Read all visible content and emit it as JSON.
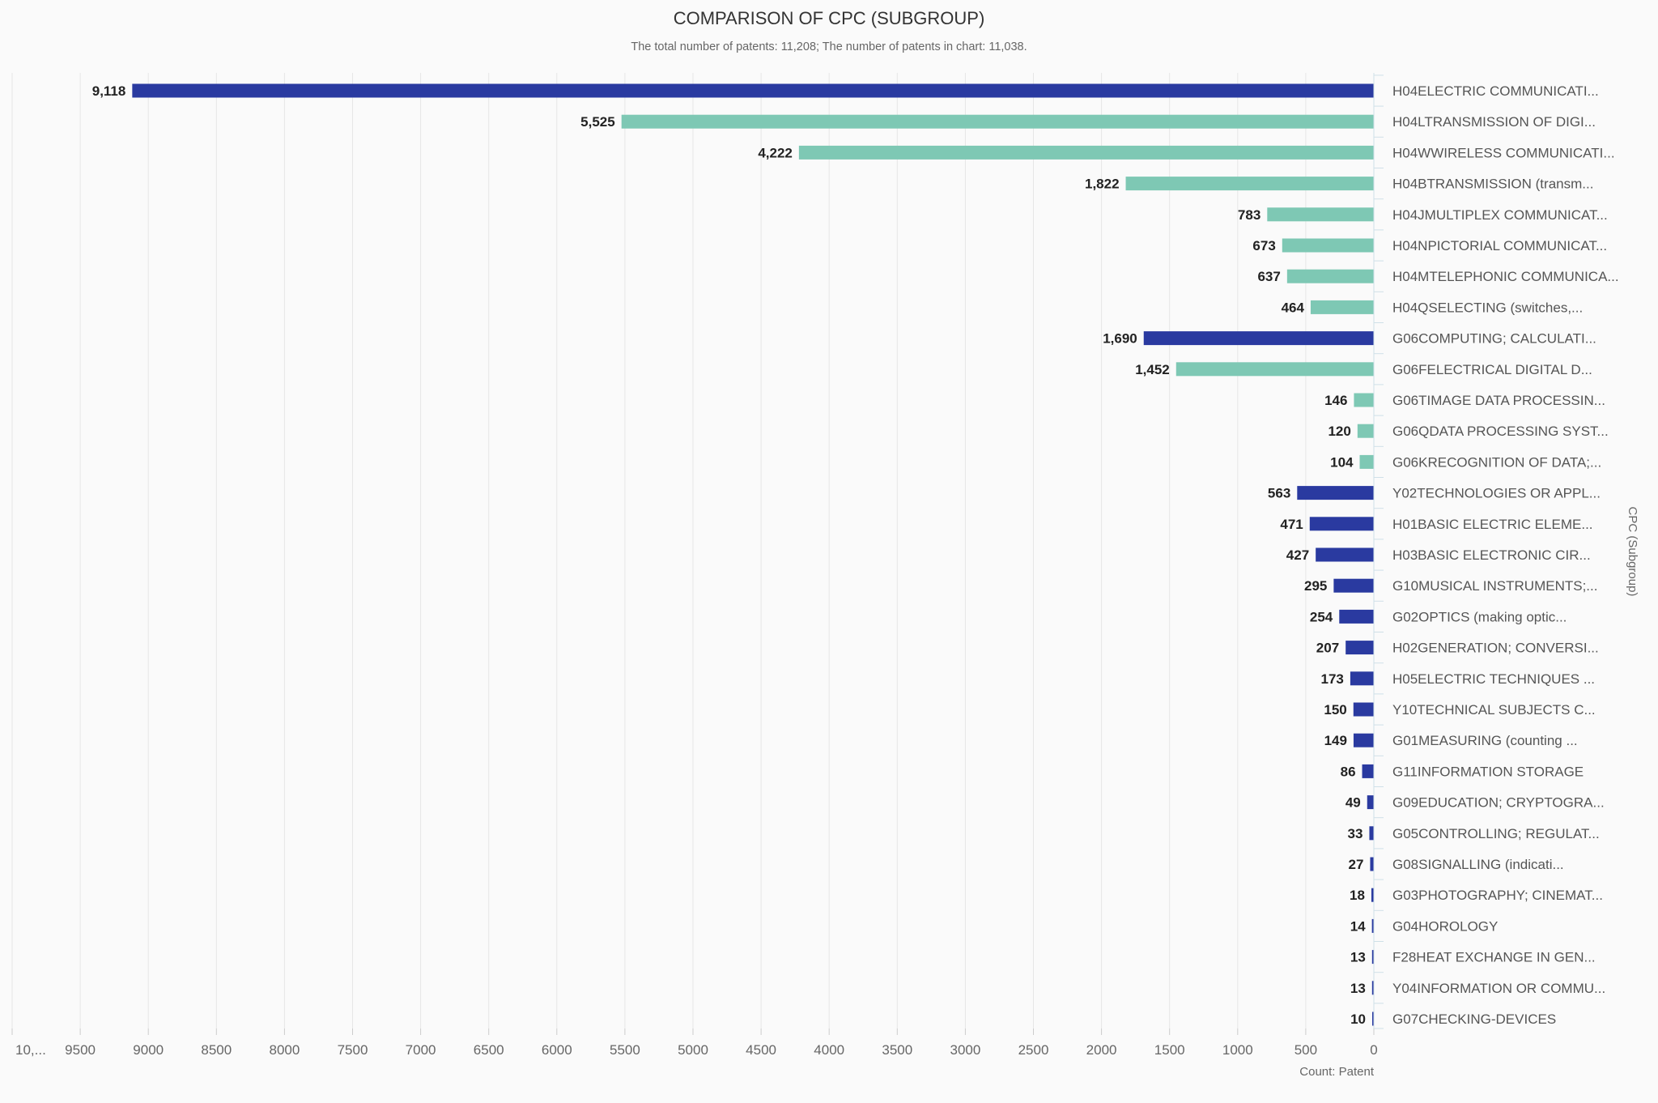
{
  "chart_data": {
    "type": "bar",
    "orientation": "horizontal",
    "title": "COMPARISON OF CPC (SUBGROUP)",
    "subtitle": "The total number of patents: 11,208; The number of patents in chart: 11,038.",
    "xlabel": "Count: Patent",
    "ylabel": "CPC (Subgroup)",
    "xlim": [
      0,
      10000
    ],
    "x_reversed": true,
    "x_ticks": [
      "0",
      "500",
      "1000",
      "1500",
      "2000",
      "2500",
      "3000",
      "3500",
      "4000",
      "4500",
      "5000",
      "5500",
      "6000",
      "6500",
      "7000",
      "7500",
      "8000",
      "8500",
      "9000",
      "9500",
      "10,..."
    ],
    "grid": true,
    "colors": {
      "dark": "#2a3aa0",
      "light": "#7ec8b4"
    },
    "categories": [
      "H04ELECTRIC COMMUNICATI...",
      "H04LTRANSMISSION OF DIGI...",
      "H04WWIRELESS COMMUNICATI...",
      "H04BTRANSMISSION (transm...",
      "H04JMULTIPLEX COMMUNICAT...",
      "H04NPICTORIAL COMMUNICAT...",
      "H04MTELEPHONIC COMMUNICA...",
      "H04QSELECTING (switches,...",
      "G06COMPUTING; CALCULATI...",
      "G06FELECTRICAL DIGITAL D...",
      "G06TIMAGE DATA PROCESSIN...",
      "G06QDATA PROCESSING SYST...",
      "G06KRECOGNITION OF DATA;...",
      "Y02TECHNOLOGIES OR APPL...",
      "H01BASIC ELECTRIC ELEME...",
      "H03BASIC ELECTRONIC CIR...",
      "G10MUSICAL INSTRUMENTS;...",
      "G02OPTICS (making optic...",
      "H02GENERATION; CONVERSI...",
      "H05ELECTRIC TECHNIQUES ...",
      "Y10TECHNICAL SUBJECTS C...",
      "G01MEASURING (counting ...",
      "G11INFORMATION STORAGE",
      "G09EDUCATION; CRYPTOGRA...",
      "G05CONTROLLING; REGULAT...",
      "G08SIGNALLING (indicati...",
      "G03PHOTOGRAPHY; CINEMAT...",
      "G04HOROLOGY",
      "F28HEAT EXCHANGE IN GEN...",
      "Y04INFORMATION OR COMMU...",
      "G07CHECKING-DEVICES"
    ],
    "values": [
      9118,
      5525,
      4222,
      1822,
      783,
      673,
      637,
      464,
      1690,
      1452,
      146,
      120,
      104,
      563,
      471,
      427,
      295,
      254,
      207,
      173,
      150,
      149,
      86,
      49,
      33,
      27,
      18,
      14,
      13,
      13,
      10
    ],
    "value_labels": [
      "9,118",
      "5,525",
      "4,222",
      "1,822",
      "783",
      "673",
      "637",
      "464",
      "1,690",
      "1,452",
      "146",
      "120",
      "104",
      "563",
      "471",
      "427",
      "295",
      "254",
      "207",
      "173",
      "150",
      "149",
      "86",
      "49",
      "33",
      "27",
      "18",
      "14",
      "13",
      "13",
      "10"
    ],
    "level": [
      "section",
      "sub",
      "sub",
      "sub",
      "sub",
      "sub",
      "sub",
      "sub",
      "section",
      "sub",
      "sub",
      "sub",
      "sub",
      "section",
      "section",
      "section",
      "section",
      "section",
      "section",
      "section",
      "section",
      "section",
      "section",
      "section",
      "section",
      "section",
      "section",
      "section",
      "section",
      "section",
      "section"
    ]
  }
}
